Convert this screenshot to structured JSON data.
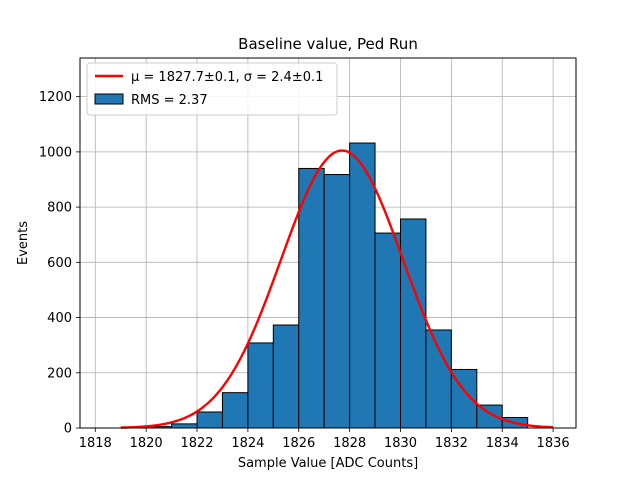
{
  "chart_data": {
    "type": "bar",
    "title": "Baseline value, Ped Run",
    "xlabel": "Sample Value [ADC Counts]",
    "ylabel": "Events",
    "xlim": [
      1817.4,
      1836.9
    ],
    "ylim": [
      0,
      1340
    ],
    "xticks": [
      1818,
      1820,
      1822,
      1824,
      1826,
      1828,
      1830,
      1832,
      1834,
      1836
    ],
    "yticks": [
      0,
      200,
      400,
      600,
      800,
      1000,
      1200
    ],
    "grid": true,
    "legend_position": "top-left",
    "bin_edges": [
      1820,
      1821,
      1822,
      1823,
      1824,
      1825,
      1826,
      1827,
      1828,
      1829,
      1830,
      1831,
      1832,
      1833,
      1834,
      1835
    ],
    "values": [
      5,
      15,
      58,
      128,
      308,
      373,
      940,
      918,
      1032,
      706,
      757,
      355,
      212,
      83,
      38
    ],
    "bar_color": "#1f77b4",
    "fit": {
      "name": "μ = 1827.7±0.1, σ = 2.4±0.1",
      "mu": 1827.7,
      "sigma": 2.4,
      "amplitude": 1005,
      "x_range": [
        1819,
        1836
      ],
      "color": "#ff0000"
    },
    "hist_legend": "RMS = 2.37"
  }
}
